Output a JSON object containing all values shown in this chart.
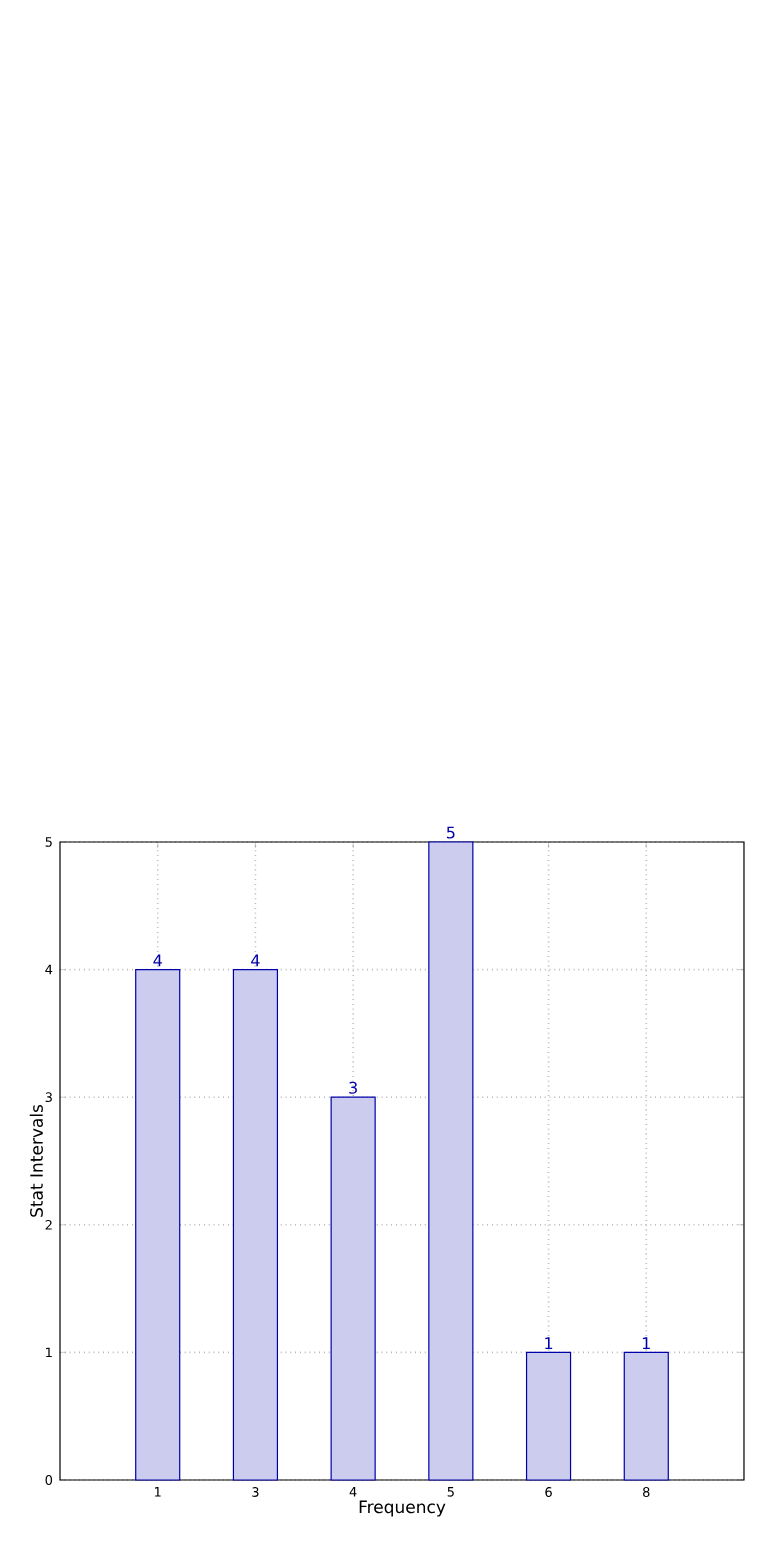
{
  "chart_data": {
    "type": "bar",
    "xlabel": "Frequency",
    "ylabel": "Stat Intervals",
    "categories": [
      "1",
      "3",
      "4",
      "5",
      "6",
      "8"
    ],
    "values": [
      4,
      4,
      3,
      5,
      1,
      1
    ],
    "color": "#ccccee",
    "ylim": [
      0,
      5
    ],
    "yticks": [
      0,
      1,
      2,
      3,
      4,
      5
    ],
    "grid": true,
    "data_labels": true
  }
}
